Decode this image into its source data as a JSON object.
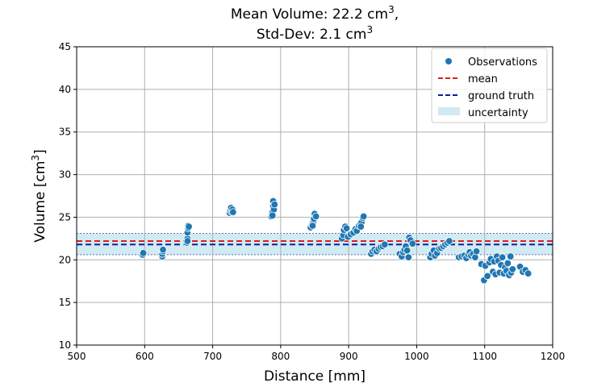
{
  "chart_data": {
    "type": "scatter",
    "title_line1": "Mean Volume: 22.2 cm",
    "title_line1_sup": "3",
    "title_line1_end": ",",
    "title_line2": "Std-Dev: 2.1 cm",
    "title_line2_sup": "3",
    "xlabel": "Distance [mm]",
    "ylabel": "Volume [cm",
    "ylabel_sup": "3",
    "ylabel_end": "]",
    "xlim": [
      500,
      1200
    ],
    "ylim": [
      10,
      45
    ],
    "xticks": [
      500,
      600,
      700,
      800,
      900,
      1000,
      1100,
      1200
    ],
    "yticks": [
      10,
      15,
      20,
      25,
      30,
      35,
      40,
      45
    ],
    "grid": true,
    "legend_position": "top-right",
    "mean": 22.2,
    "ground_truth": 21.8,
    "uncertainty_band": [
      20.6,
      23.1
    ],
    "colors": {
      "observations": "#1f77b4",
      "mean": "#e31a1c",
      "ground_truth": "#0b1fa8",
      "uncertainty": "#add8e6",
      "grid": "#b0b0b0"
    },
    "legend": [
      {
        "key": "observations",
        "label": "Observations",
        "kind": "dot"
      },
      {
        "key": "mean",
        "label": "mean",
        "kind": "dash"
      },
      {
        "key": "ground_truth",
        "label": "ground truth",
        "kind": "dash"
      },
      {
        "key": "uncertainty",
        "label": "uncertainty",
        "kind": "patch"
      }
    ],
    "series": [
      {
        "points": [
          [
            597,
            20.6
          ],
          [
            598,
            20.8
          ],
          [
            626,
            20.4
          ],
          [
            626,
            20.7
          ],
          [
            627,
            21.0
          ],
          [
            627,
            21.2
          ],
          [
            662,
            22.0
          ],
          [
            663,
            22.5
          ],
          [
            663,
            23.2
          ],
          [
            664,
            23.7
          ],
          [
            664,
            24.0
          ],
          [
            665,
            23.9
          ],
          [
            663,
            22.2
          ],
          [
            725,
            25.5
          ],
          [
            726,
            25.8
          ],
          [
            727,
            26.1
          ],
          [
            728,
            25.6
          ],
          [
            729,
            25.9
          ],
          [
            730,
            25.6
          ],
          [
            786,
            25.1
          ],
          [
            787,
            25.3
          ],
          [
            788,
            25.6
          ],
          [
            789,
            26.3
          ],
          [
            789,
            26.9
          ],
          [
            790,
            25.9
          ],
          [
            791,
            26.5
          ],
          [
            788,
            25.2
          ],
          [
            844,
            23.8
          ],
          [
            846,
            24.1
          ],
          [
            848,
            24.4
          ],
          [
            849,
            24.8
          ],
          [
            850,
            25.4
          ],
          [
            852,
            25.1
          ],
          [
            847,
            24.0
          ],
          [
            890,
            22.5
          ],
          [
            892,
            22.9
          ],
          [
            893,
            23.5
          ],
          [
            895,
            23.9
          ],
          [
            897,
            23.7
          ],
          [
            899,
            22.7
          ],
          [
            903,
            23.0
          ],
          [
            907,
            23.2
          ],
          [
            910,
            23.6
          ],
          [
            912,
            23.4
          ],
          [
            915,
            24.0
          ],
          [
            917,
            24.2
          ],
          [
            919,
            24.4
          ],
          [
            921,
            24.9
          ],
          [
            922,
            25.1
          ],
          [
            918,
            23.9
          ],
          [
            933,
            20.7
          ],
          [
            935,
            21.0
          ],
          [
            938,
            21.2
          ],
          [
            941,
            21.0
          ],
          [
            944,
            21.3
          ],
          [
            947,
            21.5
          ],
          [
            950,
            21.6
          ],
          [
            953,
            21.8
          ],
          [
            975,
            20.7
          ],
          [
            978,
            20.4
          ],
          [
            980,
            20.9
          ],
          [
            982,
            21.2
          ],
          [
            984,
            21.6
          ],
          [
            986,
            21.1
          ],
          [
            988,
            20.3
          ],
          [
            989,
            22.6
          ],
          [
            991,
            22.3
          ],
          [
            994,
            21.9
          ],
          [
            1020,
            20.3
          ],
          [
            1022,
            20.7
          ],
          [
            1025,
            21.1
          ],
          [
            1027,
            20.5
          ],
          [
            1030,
            20.8
          ],
          [
            1033,
            21.3
          ],
          [
            1036,
            21.4
          ],
          [
            1039,
            21.6
          ],
          [
            1042,
            21.8
          ],
          [
            1045,
            22.0
          ],
          [
            1048,
            22.2
          ],
          [
            1062,
            20.3
          ],
          [
            1066,
            20.4
          ],
          [
            1070,
            20.5
          ],
          [
            1073,
            20.2
          ],
          [
            1076,
            20.6
          ],
          [
            1078,
            20.9
          ],
          [
            1080,
            20.5
          ],
          [
            1083,
            20.7
          ],
          [
            1086,
            20.3
          ],
          [
            1088,
            21.0
          ],
          [
            1095,
            19.5
          ],
          [
            1099,
            17.6
          ],
          [
            1101,
            19.3
          ],
          [
            1104,
            18.1
          ],
          [
            1107,
            19.7
          ],
          [
            1109,
            20.1
          ],
          [
            1112,
            18.6
          ],
          [
            1114,
            19.8
          ],
          [
            1116,
            18.3
          ],
          [
            1118,
            20.4
          ],
          [
            1120,
            19.9
          ],
          [
            1122,
            18.5
          ],
          [
            1124,
            19.4
          ],
          [
            1126,
            20.3
          ],
          [
            1128,
            18.4
          ],
          [
            1130,
            19.1
          ],
          [
            1132,
            18.7
          ],
          [
            1134,
            19.6
          ],
          [
            1136,
            18.2
          ],
          [
            1138,
            20.4
          ],
          [
            1139,
            18.5
          ],
          [
            1141,
            18.9
          ],
          [
            1152,
            19.2
          ],
          [
            1156,
            18.6
          ],
          [
            1160,
            18.8
          ],
          [
            1164,
            18.4
          ]
        ]
      }
    ]
  }
}
